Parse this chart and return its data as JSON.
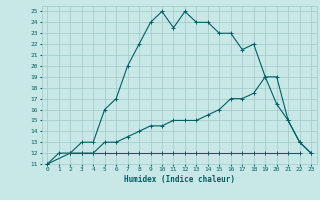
{
  "xlabel": "Humidex (Indice chaleur)",
  "xlim": [
    -0.5,
    23.5
  ],
  "ylim": [
    11,
    25.5
  ],
  "yticks": [
    11,
    12,
    13,
    14,
    15,
    16,
    17,
    18,
    19,
    20,
    21,
    22,
    23,
    24,
    25
  ],
  "xticks": [
    0,
    1,
    2,
    3,
    4,
    5,
    6,
    7,
    8,
    9,
    10,
    11,
    12,
    13,
    14,
    15,
    16,
    17,
    18,
    19,
    20,
    21,
    22,
    23
  ],
  "bg_color": "#c8e8e8",
  "line_color": "#006060",
  "grid_color": "#a0c8c8",
  "line1_x": [
    0,
    1,
    2,
    3,
    4,
    5,
    6,
    7,
    8,
    9,
    10,
    11,
    12,
    13,
    14,
    15,
    16,
    17,
    18,
    19,
    20,
    21,
    22,
    23
  ],
  "line1_y": [
    11,
    12,
    12,
    13,
    13,
    16,
    17,
    20,
    22,
    24,
    25,
    23.5,
    25,
    24,
    24,
    23,
    23,
    21.5,
    22,
    19,
    19,
    15,
    13,
    12
  ],
  "line2_x": [
    0,
    2,
    3,
    4,
    5,
    6,
    7,
    8,
    9,
    10,
    11,
    12,
    13,
    14,
    15,
    16,
    17,
    18,
    19,
    20,
    21,
    22,
    23
  ],
  "line2_y": [
    11,
    12,
    12,
    12,
    13,
    13,
    13.5,
    14,
    14.5,
    14.5,
    15,
    15,
    15,
    15.5,
    16,
    17,
    17,
    17.5,
    19,
    16.5,
    15,
    13,
    12
  ],
  "line3_x": [
    2,
    3,
    4,
    5,
    6,
    7,
    8,
    9,
    10,
    11,
    12,
    13,
    14,
    15,
    16,
    17,
    18,
    19,
    20,
    21,
    22
  ],
  "line3_y": [
    12,
    12,
    12,
    12,
    12,
    12,
    12,
    12,
    12,
    12,
    12,
    12,
    12,
    12,
    12,
    12,
    12,
    12,
    12,
    12,
    12
  ]
}
